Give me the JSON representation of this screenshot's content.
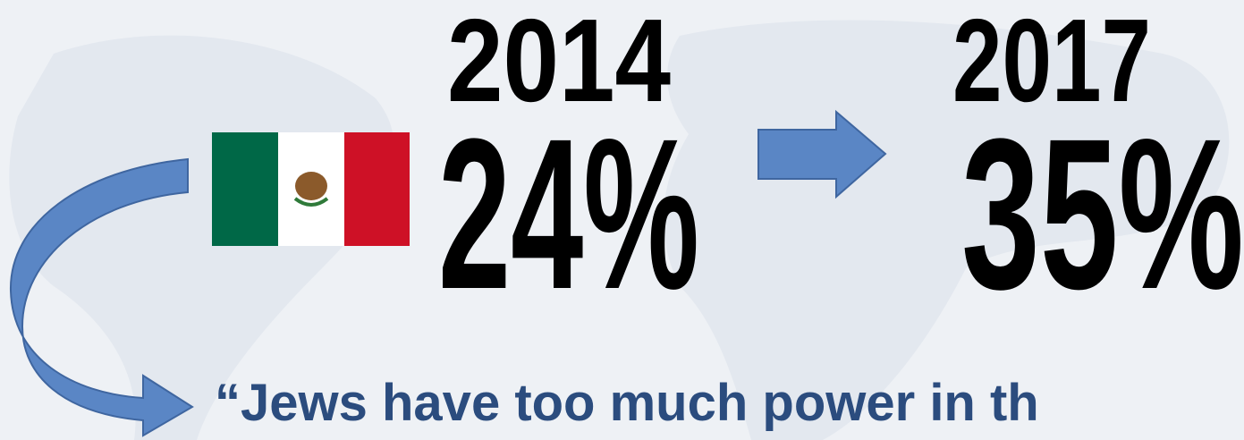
{
  "slide": {
    "left": {
      "year": "2014",
      "percent": "24%"
    },
    "right": {
      "year": "2017",
      "percent": "35%"
    },
    "quote": "“Jews have too much power in th"
  }
}
